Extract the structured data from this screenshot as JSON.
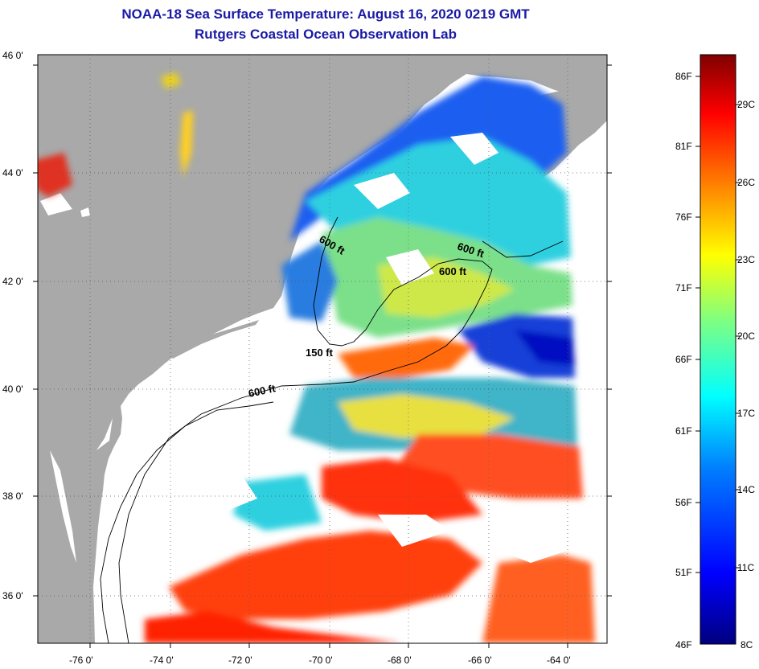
{
  "title_line1": "NOAA-18 Sea Surface Temperature:  August 16, 2020 0219 GMT",
  "title_line2": "Rutgers Coastal Ocean Observation Lab",
  "colors": {
    "title": "#1a1aa6",
    "land": "#a9a9a9",
    "no_data": "#ffffff",
    "background": "#ffffff"
  },
  "latitude_labels": [
    "46 0'",
    "44 0'",
    "42 0'",
    "40 0'",
    "38 0'",
    "36 0'"
  ],
  "longitude_labels": [
    "-76 0'",
    "-74 0'",
    "-72 0'",
    "-70 0'",
    "-68 0'",
    "-66 0'",
    "-64 0'"
  ],
  "contour_labels": [
    "600 ft",
    "600 ft",
    "600 ft",
    "150 ft",
    "600 ft"
  ],
  "colorbar": {
    "fahrenheit_labels": [
      "86F",
      "81F",
      "76F",
      "71F",
      "66F",
      "61F",
      "56F",
      "51F",
      "46F"
    ],
    "celsius_labels": [
      "29C",
      "26C",
      "23C",
      "20C",
      "17C",
      "14C",
      "11C",
      "8C"
    ],
    "range_f": [
      46,
      88
    ],
    "gradient": [
      "#00007f",
      "#0000ff",
      "#0080ff",
      "#00ffff",
      "#80ff80",
      "#ffff00",
      "#ff8000",
      "#ff0000",
      "#7f0000"
    ]
  }
}
